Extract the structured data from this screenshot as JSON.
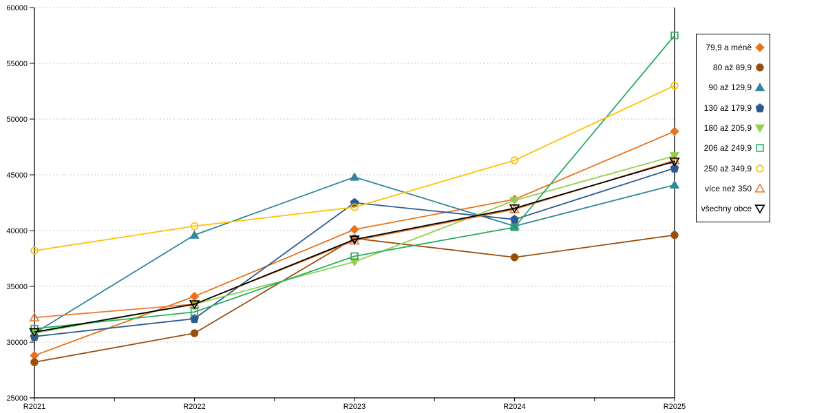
{
  "chart_data": {
    "type": "line",
    "title": "",
    "xlabel": "",
    "ylabel": "",
    "categories": [
      "R2021",
      "R2022",
      "R2023",
      "R2024",
      "R2025"
    ],
    "y_ticks": [
      25000,
      30000,
      35000,
      40000,
      45000,
      50000,
      55000,
      60000
    ],
    "ylim": [
      25000,
      60000
    ],
    "grid": "horizontal-dashed",
    "grid_color": "#C6C6C6",
    "axis_color": "#000000",
    "background_color": "#FFFFFF",
    "legend_position": "right",
    "series": [
      {
        "name": "79,9 a méně",
        "color": "#E8731A",
        "marker": "diamond",
        "marker_style": "filled",
        "values": [
          28800,
          34100,
          40100,
          42800,
          48900
        ]
      },
      {
        "name": "80 až 89,9",
        "color": "#9A4E0E",
        "marker": "circle",
        "marker_style": "filled",
        "values": [
          28200,
          30800,
          39300,
          37600,
          39600
        ]
      },
      {
        "name": "90 až 129,9",
        "color": "#31859C",
        "marker": "triangle-up",
        "marker_style": "filled",
        "values": [
          30800,
          39600,
          44800,
          40400,
          44100
        ]
      },
      {
        "name": "130 až 179,9",
        "color": "#2E5B8F",
        "marker": "pentagon",
        "marker_style": "filled",
        "values": [
          30500,
          32100,
          42500,
          41000,
          45600
        ]
      },
      {
        "name": "180 až 205,9",
        "color": "#92D050",
        "marker": "triangle-down",
        "marker_style": "filled",
        "values": [
          30800,
          33400,
          37200,
          42700,
          46700
        ]
      },
      {
        "name": "206 až 249,9",
        "color": "#26AC63",
        "marker": "square",
        "marker_style": "open",
        "values": [
          31200,
          32700,
          37700,
          40300,
          57500
        ]
      },
      {
        "name": "250 až 349,9",
        "color": "#FFC000",
        "marker": "circle",
        "marker_style": "open",
        "values": [
          38200,
          40400,
          42100,
          46300,
          53000
        ]
      },
      {
        "name": "více než 350",
        "color": "#ED7D31",
        "marker": "triangle-up",
        "marker_style": "open",
        "values": [
          32200,
          33400,
          39100,
          41900,
          46300
        ]
      },
      {
        "name": "všechny obce",
        "color": "#000000",
        "marker": "triangle-down",
        "marker_style": "open",
        "values": [
          30900,
          33400,
          39200,
          42000,
          46200
        ]
      }
    ]
  }
}
